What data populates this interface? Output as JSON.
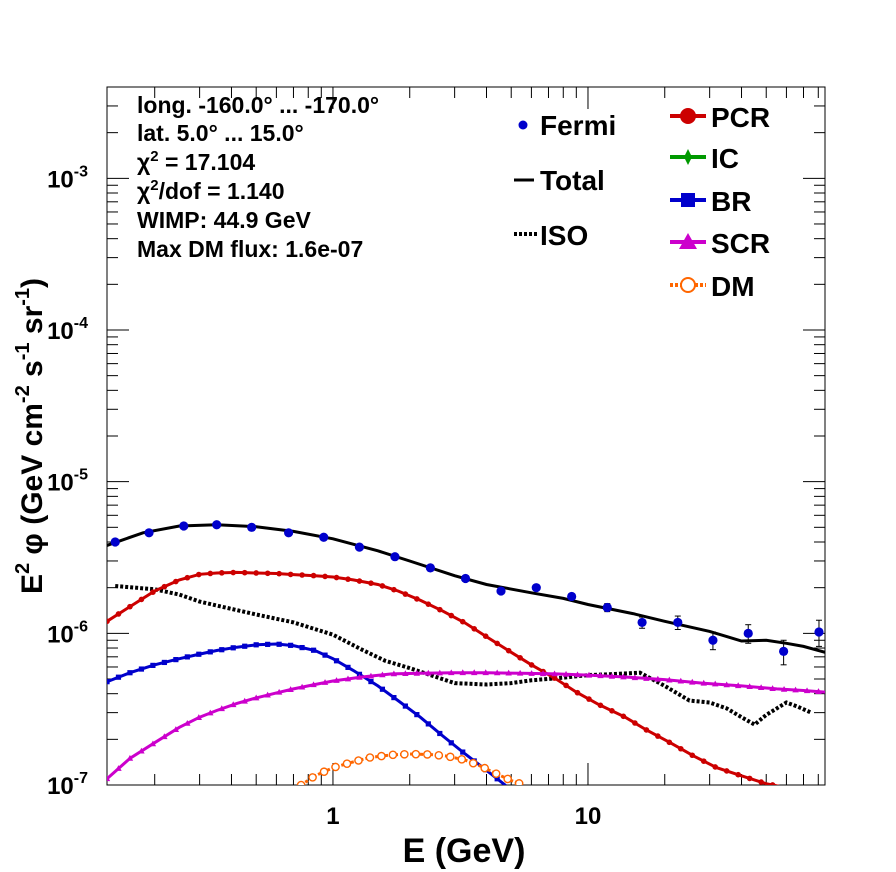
{
  "chart_data": {
    "type": "line",
    "xscale": "log",
    "yscale": "log",
    "xlim": [
      0.13,
      85
    ],
    "ylim": [
      1e-07,
      0.004
    ],
    "xlabel": "E (GeV)",
    "ylabel": {
      "base": "E",
      "sup1": "2",
      "mid": " φ (GeV cm",
      "sup2": "-2",
      "mid2": " s",
      "sup3": "-1",
      "mid3": " sr",
      "sup4": "-1",
      "end": ")"
    },
    "x_ticks": [
      {
        "v": 1,
        "label": "1"
      },
      {
        "v": 10,
        "label": "10"
      }
    ],
    "y_ticks": [
      {
        "v": 1e-07,
        "base": "10",
        "exp": "-7"
      },
      {
        "v": 1e-06,
        "base": "10",
        "exp": "-6"
      },
      {
        "v": 1e-05,
        "base": "10",
        "exp": "-5"
      },
      {
        "v": 0.0001,
        "base": "10",
        "exp": "-4"
      },
      {
        "v": 0.001,
        "base": "10",
        "exp": "-3"
      }
    ],
    "info": {
      "longitude": "long. -160.0° ... -170.0°",
      "latitude": "lat. 5.0° ... 15.0°",
      "chi2_prefix": "χ",
      "chi2_sup": "2",
      "chi2_value": " = 17.104",
      "chi2dof_prefix": "χ",
      "chi2dof_sup": "2",
      "chi2dof_value": "/dof = 1.140",
      "wimp": "WIMP: 44.9 GeV",
      "max_dm_flux": "Max DM flux: 1.6e-07"
    },
    "legend_left": [
      {
        "name": "Fermi",
        "style": "point",
        "color": "#0000cc"
      },
      {
        "name": "Total",
        "style": "line",
        "color": "#000000"
      },
      {
        "name": "ISO",
        "style": "dotted",
        "color": "#000000"
      }
    ],
    "legend_right": [
      {
        "name": "PCR",
        "color": "#cc0000",
        "marker": "circle"
      },
      {
        "name": "IC",
        "color": "#009900",
        "marker": "star"
      },
      {
        "name": "BR",
        "color": "#0000cc",
        "marker": "square"
      },
      {
        "name": "SCR",
        "color": "#cc00cc",
        "marker": "triangle"
      },
      {
        "name": "DM",
        "color": "#ff6600",
        "marker": "open-circle"
      }
    ],
    "fermi": {
      "x": [
        0.14,
        0.19,
        0.26,
        0.35,
        0.48,
        0.67,
        0.92,
        1.27,
        1.75,
        2.41,
        3.31,
        4.56,
        6.27,
        8.63,
        11.9,
        16.3,
        22.5,
        30.9,
        42.5,
        58.5,
        80.5
      ],
      "y": [
        4e-06,
        4.6e-06,
        5.1e-06,
        5.2e-06,
        5e-06,
        4.6e-06,
        4.3e-06,
        3.7e-06,
        3.2e-06,
        2.7e-06,
        2.3e-06,
        1.9e-06,
        2e-06,
        1.75e-06,
        1.48e-06,
        1.18e-06,
        1.18e-06,
        9e-07,
        1e-06,
        7.6e-07,
        1.02e-06
      ],
      "err": [
        5e-08,
        5e-08,
        5e-08,
        5e-08,
        5e-08,
        5e-08,
        5e-08,
        5e-08,
        5e-08,
        5e-08,
        5e-08,
        5e-08,
        6e-08,
        6e-08,
        9e-08,
        1e-07,
        1.2e-07,
        1.2e-07,
        1.4e-07,
        1.4e-07,
        2e-07
      ]
    },
    "series": [
      {
        "name": "Total",
        "color": "#000000",
        "style": "solid",
        "x": [
          0.13,
          0.18,
          0.25,
          0.35,
          0.5,
          0.7,
          1.0,
          1.5,
          2.0,
          3.0,
          4.0,
          6.0,
          8.0,
          10.0,
          15.0,
          20.0,
          30.0,
          40.0,
          50.0,
          60.0,
          70.0,
          85.0
        ],
        "y": [
          3.8e-06,
          4.6e-06,
          5.1e-06,
          5.2e-06,
          5.05e-06,
          4.7e-06,
          4.2e-06,
          3.5e-06,
          3e-06,
          2.4e-06,
          2.1e-06,
          1.85e-06,
          1.7e-06,
          1.55e-06,
          1.35e-06,
          1.2e-06,
          1.03e-06,
          8.9e-07,
          9e-07,
          8.6e-07,
          8.2e-07,
          7.5e-07
        ]
      },
      {
        "name": "ISO",
        "color": "#000000",
        "style": "dotted",
        "x": [
          0.14,
          0.2,
          0.25,
          0.3,
          0.4,
          0.5,
          0.7,
          1.0,
          1.3,
          1.6,
          2.0,
          2.5,
          3.0,
          4.0,
          5.0,
          6.0,
          8.0,
          10.0,
          13.0,
          16.0,
          20.0,
          25.0,
          30.0,
          35.0,
          40.0,
          45.0,
          50.0,
          55.0,
          60.0,
          66.0,
          75.0
        ],
        "y": [
          2.05e-06,
          1.95e-06,
          1.8e-06,
          1.62e-06,
          1.45e-06,
          1.33e-06,
          1.18e-06,
          9.8e-07,
          7.8e-07,
          6.6e-07,
          5.9e-07,
          5.2e-07,
          4.7e-07,
          4.6e-07,
          4.7e-07,
          4.9e-07,
          5.1e-07,
          5.3e-07,
          5.4e-07,
          5.5e-07,
          4.5e-07,
          3.6e-07,
          3.5e-07,
          3.2e-07,
          2.8e-07,
          2.5e-07,
          2.9e-07,
          3.2e-07,
          3.5e-07,
          3.3e-07,
          3e-07
        ]
      },
      {
        "name": "PCR",
        "color": "#cc0000",
        "style": "marker",
        "marker": "circle",
        "x": [
          0.13,
          0.16,
          0.2,
          0.25,
          0.3,
          0.35,
          0.42,
          0.5,
          0.6,
          0.7,
          0.85,
          1.0,
          1.2,
          1.5,
          1.8,
          2.2,
          2.7,
          3.3,
          4.0,
          5.0,
          6.0,
          7.5,
          9.0,
          11.0,
          14.0,
          17.0,
          21.0,
          26.0,
          32.0,
          40.0,
          50.0,
          58.0
        ],
        "y": [
          1.2e-06,
          1.5e-06,
          1.9e-06,
          2.25e-06,
          2.45e-06,
          2.5e-06,
          2.52e-06,
          2.5e-06,
          2.48e-06,
          2.44e-06,
          2.4e-06,
          2.35e-06,
          2.25e-06,
          2.1e-06,
          1.9e-06,
          1.65e-06,
          1.4e-06,
          1.17e-06,
          9.5e-07,
          7.5e-07,
          6.2e-07,
          5e-07,
          4.1e-07,
          3.4e-07,
          2.8e-07,
          2.3e-07,
          1.9e-07,
          1.55e-07,
          1.3e-07,
          1.15e-07,
          1.02e-07,
          9.7e-08
        ]
      },
      {
        "name": "BR",
        "color": "#0000cc",
        "style": "marker",
        "marker": "square",
        "x": [
          0.13,
          0.16,
          0.2,
          0.25,
          0.3,
          0.35,
          0.42,
          0.5,
          0.6,
          0.7,
          0.85,
          1.0,
          1.2,
          1.5,
          1.8,
          2.2,
          2.7,
          3.3,
          4.0,
          4.8
        ],
        "y": [
          4.8e-07,
          5.5e-07,
          6.2e-07,
          6.8e-07,
          7.3e-07,
          7.7e-07,
          8.1e-07,
          8.4e-07,
          8.5e-07,
          8.3e-07,
          7.7e-07,
          6.8e-07,
          5.7e-07,
          4.5e-07,
          3.6e-07,
          2.8e-07,
          2.1e-07,
          1.6e-07,
          1.25e-07,
          9.8e-08
        ]
      },
      {
        "name": "SCR",
        "color": "#cc00cc",
        "style": "marker",
        "marker": "triangle",
        "x": [
          0.13,
          0.16,
          0.2,
          0.25,
          0.3,
          0.35,
          0.42,
          0.5,
          0.6,
          0.7,
          0.85,
          1.0,
          1.3,
          1.7,
          2.2,
          3.0,
          4.0,
          5.5,
          7.5,
          10.0,
          14.0,
          20.0,
          28.0,
          40.0,
          55.0,
          70.0,
          85.0
        ],
        "y": [
          1.1e-07,
          1.5e-07,
          1.9e-07,
          2.4e-07,
          2.8e-07,
          3.1e-07,
          3.45e-07,
          3.75e-07,
          4.05e-07,
          4.3e-07,
          4.6e-07,
          4.85e-07,
          5.15e-07,
          5.4e-07,
          5.45e-07,
          5.5e-07,
          5.5e-07,
          5.45e-07,
          5.4e-07,
          5.3e-07,
          5.15e-07,
          4.95e-07,
          4.7e-07,
          4.5e-07,
          4.3e-07,
          4.2e-07,
          4.1e-07
        ]
      },
      {
        "name": "DM",
        "color": "#ff6600",
        "style": "marker",
        "marker": "open-circle",
        "x": [
          0.75,
          0.85,
          1.0,
          1.2,
          1.4,
          1.7,
          2.0,
          2.4,
          2.8,
          3.3,
          3.8,
          4.4,
          5.0,
          5.6
        ],
        "y": [
          1e-07,
          1.15e-07,
          1.3e-07,
          1.42e-07,
          1.52e-07,
          1.58e-07,
          1.6e-07,
          1.59e-07,
          1.55e-07,
          1.46e-07,
          1.33e-07,
          1.18e-07,
          1.07e-07,
          1e-07
        ]
      }
    ]
  }
}
